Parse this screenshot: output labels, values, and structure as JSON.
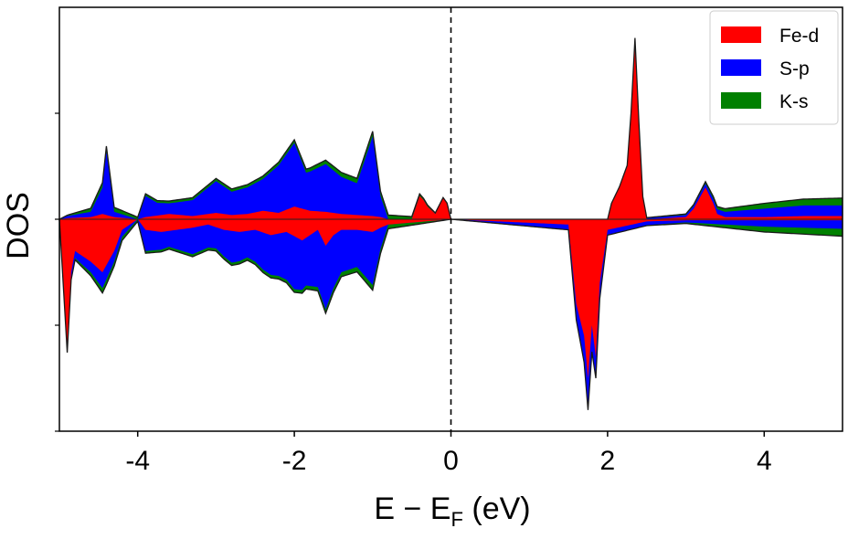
{
  "chart_data": {
    "type": "area",
    "xlabel": "E − E",
    "xlabel_sub": "F",
    "xlabel_unit": " (eV)",
    "ylabel": "DOS",
    "xlim": [
      -5,
      5
    ],
    "ylim": [
      -2.0,
      2.0
    ],
    "xticks": [
      -4,
      -2,
      0,
      2,
      4
    ],
    "xtick_labels": [
      "-4",
      "-2",
      "0",
      "2",
      "4"
    ],
    "yticks": [
      -2,
      -1,
      0,
      1
    ],
    "ytick_labels_visible": false,
    "fermi_line": {
      "x": 0,
      "style": "dashed",
      "color": "#000000"
    },
    "legend": {
      "placement": "top-right"
    },
    "grid": false,
    "series": [
      {
        "name": "Fe-d",
        "color": "#ff0000",
        "up_x": [
          -5,
          -4.9,
          -4.6,
          -4.45,
          -4.3,
          -4.0,
          -3.9,
          -3.6,
          -3.3,
          -3.0,
          -2.8,
          -2.6,
          -2.4,
          -2.2,
          -2.0,
          -1.8,
          -1.6,
          -1.4,
          -1.2,
          -1.0,
          -0.9,
          -0.8,
          -0.5,
          -0.4,
          -0.35,
          -0.3,
          -0.2,
          -0.1,
          -0.05,
          0,
          1.0,
          2.0,
          2.05,
          2.15,
          2.25,
          2.3,
          2.35,
          2.4,
          2.45,
          2.5,
          3.0,
          3.1,
          3.25,
          3.35,
          3.4,
          3.5,
          4.0,
          4.5,
          5.0
        ],
        "up_y": [
          0,
          0.01,
          0.02,
          0.05,
          0.02,
          0,
          0.02,
          0.05,
          0.03,
          0.06,
          0.04,
          0.05,
          0.08,
          0.06,
          0.12,
          0.08,
          0.07,
          0.05,
          0.04,
          0.03,
          0.02,
          0,
          0,
          0.22,
          0.18,
          0.12,
          0.05,
          0.2,
          0.15,
          0,
          0,
          0,
          0.15,
          0.3,
          0.5,
          1.0,
          1.7,
          0.9,
          0.2,
          0,
          0.02,
          0.1,
          0.3,
          0.15,
          0.05,
          0.02,
          0.02,
          0.03,
          0.03
        ],
        "down_x": [
          -5,
          -4.95,
          -4.9,
          -4.85,
          -4.8,
          -4.6,
          -4.45,
          -4.3,
          -4.2,
          -4.0,
          -3.9,
          -3.7,
          -3.5,
          -3.3,
          -3.1,
          -2.9,
          -2.7,
          -2.5,
          -2.3,
          -2.1,
          -1.9,
          -1.7,
          -1.6,
          -1.5,
          -1.4,
          -1.2,
          -1.0,
          -0.9,
          -0.8,
          0,
          1.5,
          1.6,
          1.7,
          1.75,
          1.8,
          1.85,
          1.9,
          2.0,
          2.5,
          3.0,
          4.0,
          5.0
        ],
        "down_y": [
          0,
          -0.6,
          -1.2,
          -0.5,
          -0.3,
          -0.4,
          -0.5,
          -0.3,
          -0.1,
          0,
          -0.1,
          -0.12,
          -0.1,
          -0.08,
          -0.05,
          -0.1,
          -0.12,
          -0.1,
          -0.15,
          -0.12,
          -0.2,
          -0.1,
          -0.25,
          -0.15,
          -0.1,
          -0.1,
          -0.12,
          -0.08,
          -0.05,
          0,
          -0.05,
          -0.8,
          -1.1,
          -1.5,
          -1.0,
          -1.3,
          -0.6,
          -0.1,
          -0.02,
          -0.01,
          -0.01,
          -0.01
        ]
      },
      {
        "name": "S-p",
        "color": "#0000ff",
        "up_x": [
          -5,
          -4.9,
          -4.6,
          -4.45,
          -4.4,
          -4.3,
          -4.0,
          -3.9,
          -3.75,
          -3.6,
          -3.3,
          -3.0,
          -2.8,
          -2.6,
          -2.4,
          -2.2,
          -2.0,
          -1.85,
          -1.6,
          -1.4,
          -1.2,
          -1.0,
          -0.9,
          -0.8,
          0,
          2.0,
          3.0,
          4.0,
          4.5,
          5.0
        ],
        "up_y": [
          0,
          0.02,
          0.05,
          0.25,
          0.6,
          0.05,
          0,
          0.2,
          0.12,
          0.1,
          0.15,
          0.3,
          0.22,
          0.25,
          0.3,
          0.45,
          0.6,
          0.35,
          0.45,
          0.35,
          0.3,
          0.75,
          0.2,
          0,
          0,
          0,
          0.02,
          0.08,
          0.1,
          0.1
        ],
        "down_x": [
          -5,
          -4.9,
          -4.6,
          -4.45,
          -4.3,
          -4.0,
          -3.9,
          -3.6,
          -3.3,
          -3.0,
          -2.8,
          -2.6,
          -2.4,
          -2.2,
          -2.0,
          -1.85,
          -1.6,
          -1.4,
          -1.2,
          -1.0,
          -0.9,
          -0.8,
          0,
          1.5,
          1.75,
          2.0,
          3.0,
          4.0,
          5.0
        ],
        "down_y": [
          0,
          -0.05,
          -0.1,
          -0.15,
          -0.1,
          0,
          -0.2,
          -0.15,
          -0.25,
          -0.2,
          -0.3,
          -0.25,
          -0.35,
          -0.4,
          -0.5,
          -0.45,
          -0.6,
          -0.4,
          -0.35,
          -0.5,
          -0.2,
          0,
          0,
          -0.05,
          -0.3,
          -0.05,
          -0.02,
          -0.06,
          -0.08
        ]
      },
      {
        "name": "K-s",
        "color": "#008000",
        "up_x": [
          -5,
          -4.4,
          -4.0,
          -2.0,
          -1.0,
          0,
          2.0,
          3.0,
          4.0,
          5.0
        ],
        "up_y": [
          0,
          0.05,
          0.02,
          0.03,
          0.05,
          0,
          0,
          0.01,
          0.05,
          0.07
        ],
        "down_x": [
          -5,
          -4.4,
          -4.0,
          -2.0,
          -1.0,
          0,
          2.0,
          3.0,
          4.0,
          5.0
        ],
        "down_y": [
          0,
          -0.05,
          -0.02,
          -0.03,
          -0.05,
          0,
          0,
          -0.01,
          -0.05,
          -0.07
        ]
      }
    ]
  }
}
